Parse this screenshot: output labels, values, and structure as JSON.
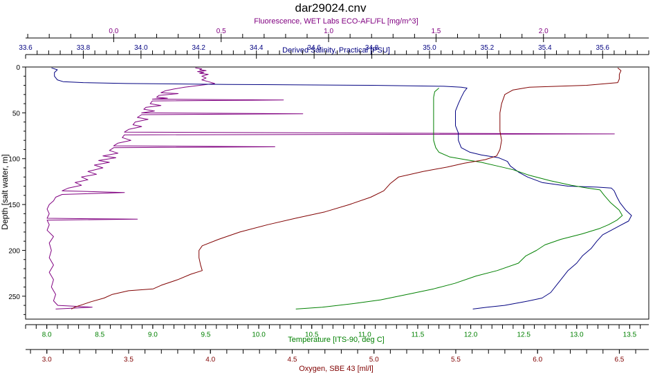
{
  "chart_data": {
    "type": "line",
    "title": "dar29024.cnv",
    "ylabel": "Depth [salt water, m]",
    "ylim": [
      0,
      275
    ],
    "yticks": [
      0,
      50,
      100,
      150,
      200,
      250
    ],
    "grid": false,
    "colors": {
      "fluorescence": "#800080",
      "salinity": "#000080",
      "temperature": "#008000",
      "oxygen": "#800000"
    },
    "axes": {
      "fluorescence": {
        "label": "Fluorescence, WET Labs ECO-AFL/FL [mg/m^3]",
        "range": [
          -0.41,
          2.49
        ],
        "ticks": [
          "0.0",
          "0.5",
          "1.0",
          "1.5",
          "2.0"
        ],
        "tick_values": [
          0.0,
          0.5,
          1.0,
          1.5,
          2.0
        ]
      },
      "salinity": {
        "label": "Derived Salinity, Practical [PSU]",
        "range": [
          33.6,
          35.76
        ],
        "ticks": [
          "33.6",
          "33.8",
          "34.0",
          "34.2",
          "34.4",
          "34.6",
          "34.8",
          "35.0",
          "35.2",
          "35.4",
          "35.6"
        ],
        "tick_values": [
          33.6,
          33.8,
          34.0,
          34.2,
          34.4,
          34.6,
          34.8,
          35.0,
          35.2,
          35.4,
          35.6
        ]
      },
      "temperature": {
        "label": "Temperature [ITS-90, deg C]",
        "range": [
          7.8,
          13.68
        ],
        "ticks": [
          "8.0",
          "8.5",
          "9.0",
          "9.5",
          "10.0",
          "10.5",
          "11.0",
          "11.5",
          "12.0",
          "12.5",
          "13.0",
          "13.5"
        ],
        "tick_values": [
          8.0,
          8.5,
          9.0,
          9.5,
          10.0,
          10.5,
          11.0,
          11.5,
          12.0,
          12.5,
          13.0,
          13.5
        ]
      },
      "oxygen": {
        "label": "Oxygen, SBE 43 [ml/l]",
        "range": [
          2.87,
          6.68
        ],
        "ticks": [
          "3.0",
          "3.5",
          "4.0",
          "4.5",
          "5.0",
          "5.5",
          "6.0",
          "6.5"
        ],
        "tick_values": [
          3.0,
          3.5,
          4.0,
          4.5,
          5.0,
          5.5,
          6.0,
          6.5
        ]
      }
    },
    "series": [
      {
        "name": "Fluorescence, WET Labs ECO-AFL/FL [mg/m^3]",
        "axis": "fluorescence",
        "points": [
          [
            0.38,
            1
          ],
          [
            0.41,
            2
          ],
          [
            0.4,
            3
          ],
          [
            0.43,
            4
          ],
          [
            0.39,
            5
          ],
          [
            0.42,
            6
          ],
          [
            0.4,
            7
          ],
          [
            0.44,
            8
          ],
          [
            0.41,
            10
          ],
          [
            0.43,
            12
          ],
          [
            0.41,
            14
          ],
          [
            0.44,
            16
          ],
          [
            0.47,
            18
          ],
          [
            0.33,
            22
          ],
          [
            0.28,
            24
          ],
          [
            0.24,
            26
          ],
          [
            0.22,
            28
          ],
          [
            0.3,
            29
          ],
          [
            0.21,
            31
          ],
          [
            0.2,
            33
          ],
          [
            0.25,
            34
          ],
          [
            0.18,
            35
          ],
          [
            0.79,
            36
          ],
          [
            0.18,
            37
          ],
          [
            0.17,
            40
          ],
          [
            0.22,
            42
          ],
          [
            0.15,
            44
          ],
          [
            0.14,
            46
          ],
          [
            0.19,
            48
          ],
          [
            0.13,
            50
          ],
          [
            0.88,
            51
          ],
          [
            0.13,
            52
          ],
          [
            0.11,
            55
          ],
          [
            0.16,
            57
          ],
          [
            0.1,
            60
          ],
          [
            0.09,
            63
          ],
          [
            0.13,
            65
          ],
          [
            0.07,
            68
          ],
          [
            0.05,
            71
          ],
          [
            1.16,
            72
          ],
          [
            2.33,
            73
          ],
          [
            0.05,
            74
          ],
          [
            0.04,
            77
          ],
          [
            0.08,
            80
          ],
          [
            0.02,
            83
          ],
          [
            0.0,
            86
          ],
          [
            0.75,
            87
          ],
          [
            0.0,
            88
          ],
          [
            -0.02,
            91
          ],
          [
            0.02,
            94
          ],
          [
            -0.05,
            97
          ],
          [
            0.01,
            99
          ],
          [
            -0.07,
            102
          ],
          [
            -0.02,
            104
          ],
          [
            -0.09,
            107
          ],
          [
            -0.05,
            110
          ],
          [
            -0.12,
            114
          ],
          [
            -0.08,
            117
          ],
          [
            -0.15,
            120
          ],
          [
            -0.12,
            123
          ],
          [
            -0.18,
            126
          ],
          [
            -0.15,
            129
          ],
          [
            -0.21,
            132
          ],
          [
            -0.24,
            135
          ],
          [
            0.05,
            137
          ],
          [
            -0.24,
            139
          ],
          [
            -0.27,
            142
          ],
          [
            -0.28,
            146
          ],
          [
            -0.3,
            150
          ],
          [
            -0.31,
            155
          ],
          [
            -0.3,
            160
          ],
          [
            -0.31,
            165
          ],
          [
            0.11,
            166
          ],
          [
            -0.31,
            167
          ],
          [
            -0.3,
            172
          ],
          [
            -0.31,
            178
          ],
          [
            -0.28,
            185
          ],
          [
            -0.3,
            192
          ],
          [
            -0.29,
            200
          ],
          [
            -0.3,
            208
          ],
          [
            -0.28,
            216
          ],
          [
            -0.3,
            224
          ],
          [
            -0.28,
            232
          ],
          [
            -0.29,
            240
          ],
          [
            -0.27,
            248
          ],
          [
            -0.28,
            255
          ],
          [
            -0.26,
            260
          ],
          [
            -0.1,
            262
          ],
          [
            -0.27,
            264
          ]
        ]
      },
      {
        "name": "Derived Salinity, Practical [PSU]",
        "axis": "salinity",
        "points": [
          [
            33.69,
            1
          ],
          [
            33.71,
            3
          ],
          [
            33.7,
            6
          ],
          [
            33.7,
            10
          ],
          [
            33.71,
            14
          ],
          [
            33.73,
            16
          ],
          [
            33.8,
            17
          ],
          [
            33.95,
            18
          ],
          [
            34.3,
            19
          ],
          [
            34.8,
            20
          ],
          [
            35.05,
            21
          ],
          [
            35.11,
            22
          ],
          [
            35.13,
            23
          ],
          [
            35.12,
            27
          ],
          [
            35.11,
            33
          ],
          [
            35.1,
            40
          ],
          [
            35.09,
            48
          ],
          [
            35.09,
            56
          ],
          [
            35.09,
            64
          ],
          [
            35.1,
            72
          ],
          [
            35.1,
            80
          ],
          [
            35.11,
            88
          ],
          [
            35.14,
            93
          ],
          [
            35.18,
            96
          ],
          [
            35.24,
            99
          ],
          [
            35.27,
            103
          ],
          [
            35.28,
            108
          ],
          [
            35.31,
            115
          ],
          [
            35.34,
            120
          ],
          [
            35.39,
            126
          ],
          [
            35.48,
            130
          ],
          [
            35.58,
            131
          ],
          [
            35.63,
            132
          ],
          [
            35.64,
            135
          ],
          [
            35.65,
            142
          ],
          [
            35.66,
            148
          ],
          [
            35.68,
            156
          ],
          [
            35.7,
            162
          ],
          [
            35.69,
            168
          ],
          [
            35.66,
            173
          ],
          [
            35.63,
            178
          ],
          [
            35.6,
            183
          ],
          [
            35.58,
            190
          ],
          [
            35.56,
            198
          ],
          [
            35.53,
            206
          ],
          [
            35.51,
            214
          ],
          [
            35.48,
            222
          ],
          [
            35.46,
            230
          ],
          [
            35.44,
            238
          ],
          [
            35.42,
            246
          ],
          [
            35.39,
            252
          ],
          [
            35.33,
            256
          ],
          [
            35.26,
            260
          ],
          [
            35.2,
            262
          ],
          [
            35.15,
            264
          ]
        ]
      },
      {
        "name": "Temperature [ITS-90, deg C]",
        "axis": "temperature",
        "points": [
          [
            11.7,
            23
          ],
          [
            11.66,
            27
          ],
          [
            11.65,
            33
          ],
          [
            11.65,
            40
          ],
          [
            11.65,
            50
          ],
          [
            11.65,
            60
          ],
          [
            11.65,
            70
          ],
          [
            11.65,
            80
          ],
          [
            11.67,
            88
          ],
          [
            11.7,
            93
          ],
          [
            11.8,
            98
          ],
          [
            11.95,
            101
          ],
          [
            12.1,
            104
          ],
          [
            12.25,
            108
          ],
          [
            12.4,
            112
          ],
          [
            12.55,
            118
          ],
          [
            12.75,
            124
          ],
          [
            12.95,
            129
          ],
          [
            13.1,
            132
          ],
          [
            13.22,
            134
          ],
          [
            13.26,
            140
          ],
          [
            13.32,
            148
          ],
          [
            13.4,
            156
          ],
          [
            13.43,
            162
          ],
          [
            13.38,
            167
          ],
          [
            13.3,
            172
          ],
          [
            13.22,
            176
          ],
          [
            13.05,
            182
          ],
          [
            12.85,
            188
          ],
          [
            12.7,
            194
          ],
          [
            12.62,
            200
          ],
          [
            12.52,
            206
          ],
          [
            12.45,
            214
          ],
          [
            12.25,
            222
          ],
          [
            12.05,
            228
          ],
          [
            11.85,
            236
          ],
          [
            11.65,
            242
          ],
          [
            11.4,
            248
          ],
          [
            11.15,
            254
          ],
          [
            10.9,
            258
          ],
          [
            10.6,
            262
          ],
          [
            10.35,
            264
          ]
        ]
      },
      {
        "name": "Oxygen, SBE 43 [ml/l]",
        "axis": "oxygen",
        "points": [
          [
            6.49,
            1
          ],
          [
            6.51,
            4
          ],
          [
            6.5,
            8
          ],
          [
            6.5,
            13
          ],
          [
            6.49,
            17
          ],
          [
            6.3,
            20
          ],
          [
            5.95,
            22
          ],
          [
            5.85,
            25
          ],
          [
            5.8,
            30
          ],
          [
            5.78,
            40
          ],
          [
            5.77,
            50
          ],
          [
            5.77,
            60
          ],
          [
            5.77,
            70
          ],
          [
            5.78,
            80
          ],
          [
            5.77,
            90
          ],
          [
            5.75,
            97
          ],
          [
            5.68,
            101
          ],
          [
            5.55,
            105
          ],
          [
            5.45,
            109
          ],
          [
            5.3,
            114
          ],
          [
            5.15,
            120
          ],
          [
            5.1,
            127
          ],
          [
            5.06,
            135
          ],
          [
            4.98,
            142
          ],
          [
            4.85,
            150
          ],
          [
            4.7,
            158
          ],
          [
            4.52,
            165
          ],
          [
            4.35,
            172
          ],
          [
            4.18,
            180
          ],
          [
            4.05,
            188
          ],
          [
            3.95,
            195
          ],
          [
            3.93,
            200
          ],
          [
            3.93,
            208
          ],
          [
            3.94,
            216
          ],
          [
            3.95,
            222
          ],
          [
            3.88,
            226
          ],
          [
            3.8,
            232
          ],
          [
            3.7,
            238
          ],
          [
            3.65,
            242
          ],
          [
            3.5,
            244
          ],
          [
            3.4,
            248
          ],
          [
            3.35,
            252
          ],
          [
            3.27,
            256
          ],
          [
            3.22,
            259
          ],
          [
            3.17,
            262
          ],
          [
            3.15,
            264
          ]
        ]
      }
    ]
  }
}
